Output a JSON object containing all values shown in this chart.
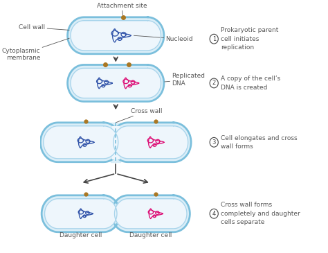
{
  "bg_color": "#ffffff",
  "cell_fill": "#daeef8",
  "cell_edge_outer": "#7bbfdc",
  "cell_edge_inner": "#a8d4eb",
  "dna_blue": "#3355aa",
  "dna_pink": "#dd1177",
  "attachment_color": "#aa7722",
  "text_color": "#555555",
  "arrow_color": "#444444",
  "label_fontsize": 6.5,
  "step_fontsize": 6.5,
  "labels": {
    "cell_wall": "Cell wall",
    "attachment": "Attachment site",
    "nucleoid": "Nucleoid",
    "cytoplasmic": "Cytoplasmic\nmembrane",
    "replicated": "Replicated\nDNA",
    "cross_wall": "Cross wall",
    "daughter1": "Daughter cell",
    "daughter2": "Daughter cell"
  },
  "steps": [
    {
      "num": "1",
      "text": "Prokaryotic parent\ncell initiates\nreplication"
    },
    {
      "num": "2",
      "text": "A copy of the cell’s\nDNA is created"
    },
    {
      "num": "3",
      "text": "Cell elongates and cross\nwall forms"
    },
    {
      "num": "4",
      "text": "Cross wall forms\ncompletely and daughter\ncells separate"
    }
  ]
}
